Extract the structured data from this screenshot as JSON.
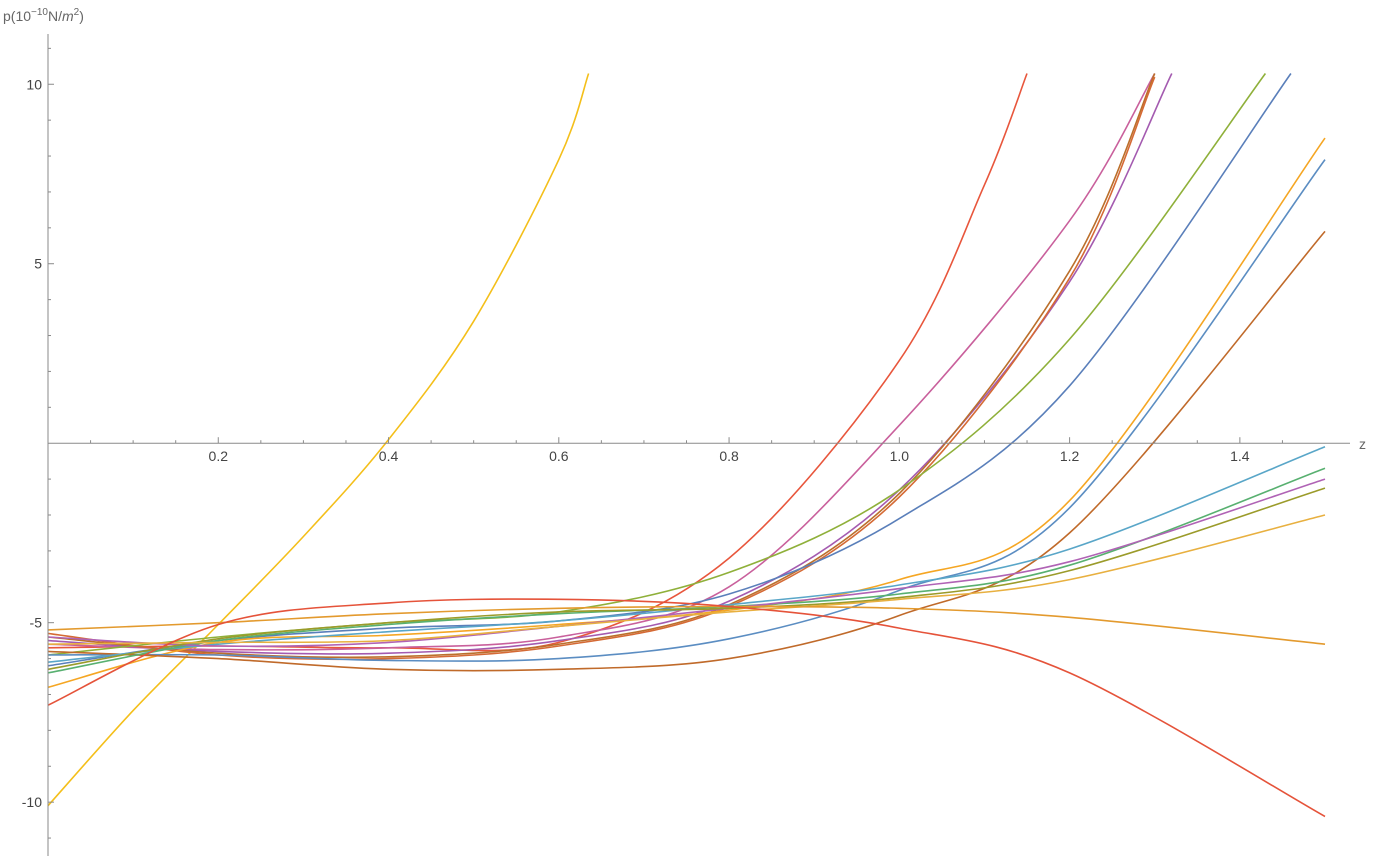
{
  "chart_data": {
    "type": "line",
    "xlabel": "z",
    "ylabel_parts": {
      "prefix": "p(10",
      "exp": "−10",
      "mid": "N/",
      "unit": "m",
      "unit_exp": "2",
      "suffix": ")"
    },
    "xlim": [
      0,
      1.5
    ],
    "ylim": [
      -11.5,
      11.4
    ],
    "x_ticks": [
      {
        "v": 0.2,
        "label": "0.2"
      },
      {
        "v": 0.4,
        "label": "0.4"
      },
      {
        "v": 0.6,
        "label": "0.6"
      },
      {
        "v": 0.8,
        "label": "0.8"
      },
      {
        "v": 1.0,
        "label": "1.0"
      },
      {
        "v": 1.2,
        "label": "1.2"
      },
      {
        "v": 1.4,
        "label": "1.4"
      }
    ],
    "y_ticks": [
      {
        "v": -10,
        "label": "-10"
      },
      {
        "v": -5,
        "label": "-5"
      },
      {
        "v": 5,
        "label": "5"
      },
      {
        "v": 10,
        "label": "10"
      }
    ],
    "grid": false,
    "series": [
      {
        "color": "#f4bf1a",
        "x": [
          0,
          0.1,
          0.2,
          0.3,
          0.4,
          0.5,
          0.6,
          0.635
        ],
        "y": [
          -10.1,
          -7.45,
          -5.05,
          -2.6,
          0.1,
          3.4,
          7.9,
          10.3
        ]
      },
      {
        "color": "#e8563c",
        "x": [
          0,
          0.2,
          0.4,
          0.6,
          0.8,
          1.0,
          1.1,
          1.15
        ],
        "y": [
          -5.7,
          -5.65,
          -5.7,
          -5.55,
          -3.2,
          2.3,
          7.2,
          10.3
        ]
      },
      {
        "color": "#c9609c",
        "x": [
          0,
          0.2,
          0.4,
          0.6,
          0.8,
          1.0,
          1.2,
          1.3
        ],
        "y": [
          -5.6,
          -5.75,
          -5.7,
          -5.4,
          -4.0,
          0.5,
          6.2,
          10.3
        ]
      },
      {
        "color": "#a45bb0",
        "x": [
          0,
          0.2,
          0.4,
          0.6,
          0.8,
          1.0,
          1.2,
          1.32
        ],
        "y": [
          -5.5,
          -5.8,
          -5.85,
          -5.5,
          -4.4,
          -1.3,
          4.5,
          10.3
        ]
      },
      {
        "color": "#bb6f2b",
        "x": [
          0,
          0.2,
          0.4,
          0.6,
          0.8,
          1.0,
          1.2,
          1.3
        ],
        "y": [
          -5.4,
          -5.85,
          -5.95,
          -5.6,
          -4.5,
          -1.4,
          4.8,
          10.3
        ]
      },
      {
        "color": "#d56a35",
        "x": [
          0,
          0.2,
          0.4,
          0.6,
          0.8,
          1.0,
          1.2,
          1.3
        ],
        "y": [
          -5.3,
          -5.9,
          -6.0,
          -5.65,
          -4.55,
          -1.5,
          4.6,
          10.2
        ]
      },
      {
        "color": "#8fb03a",
        "x": [
          0,
          0.2,
          0.4,
          0.6,
          0.8,
          1.0,
          1.2,
          1.43
        ],
        "y": [
          -5.9,
          -5.4,
          -5.0,
          -4.7,
          -3.6,
          -1.3,
          2.9,
          10.3
        ]
      },
      {
        "color": "#5a7fba",
        "x": [
          0,
          0.2,
          0.4,
          0.6,
          0.8,
          1.0,
          1.2,
          1.46
        ],
        "y": [
          -6.2,
          -5.5,
          -5.15,
          -4.95,
          -4.2,
          -2.1,
          1.6,
          10.3
        ]
      },
      {
        "color": "#f5a623",
        "x": [
          0,
          0.2,
          0.4,
          0.6,
          0.8,
          1.0,
          1.2,
          1.5
        ],
        "y": [
          -6.8,
          -5.55,
          -5.35,
          -5.05,
          -4.65,
          -3.8,
          -1.6,
          8.5
        ]
      },
      {
        "color": "#5b8dc2",
        "x": [
          0,
          0.2,
          0.4,
          0.6,
          0.8,
          1.0,
          1.2,
          1.5
        ],
        "y": [
          -5.9,
          -5.9,
          -6.05,
          -6.0,
          -5.45,
          -4.1,
          -1.8,
          7.9
        ]
      },
      {
        "color": "#c06a2a",
        "x": [
          0,
          0.2,
          0.4,
          0.6,
          0.8,
          1.0,
          1.2,
          1.5
        ],
        "y": [
          -5.8,
          -6.0,
          -6.3,
          -6.3,
          -6.0,
          -4.8,
          -2.5,
          5.9
        ]
      },
      {
        "color": "#59a6c8",
        "x": [
          0,
          0.2,
          0.4,
          0.6,
          0.8,
          1.0,
          1.2,
          1.5
        ],
        "y": [
          -6.1,
          -5.6,
          -5.25,
          -4.95,
          -4.5,
          -3.95,
          -2.95,
          -0.1
        ]
      },
      {
        "color": "#58b070",
        "x": [
          0,
          0.2,
          0.4,
          0.6,
          0.8,
          1.0,
          1.2,
          1.5
        ],
        "y": [
          -6.4,
          -5.5,
          -5.05,
          -4.75,
          -4.55,
          -4.2,
          -3.4,
          -0.7
        ]
      },
      {
        "color": "#b063b5",
        "x": [
          0,
          0.2,
          0.4,
          0.6,
          0.8,
          1.0,
          1.2,
          1.5
        ],
        "y": [
          -5.4,
          -5.65,
          -5.55,
          -5.1,
          -4.6,
          -4.05,
          -3.3,
          -1.0
        ]
      },
      {
        "color": "#9b9b2a",
        "x": [
          0,
          0.2,
          0.4,
          0.6,
          0.8,
          1.0,
          1.2,
          1.5
        ],
        "y": [
          -6.3,
          -5.45,
          -5.0,
          -4.7,
          -4.6,
          -4.3,
          -3.55,
          -1.25
        ]
      },
      {
        "color": "#e8b040",
        "x": [
          0,
          0.2,
          0.4,
          0.6,
          0.8,
          1.0,
          1.2,
          1.5
        ],
        "y": [
          -5.6,
          -5.55,
          -5.5,
          -5.1,
          -4.7,
          -4.35,
          -3.8,
          -2.0
        ]
      },
      {
        "color": "#e39a2e",
        "x": [
          0,
          0.2,
          0.4,
          0.6,
          0.8,
          1.0,
          1.2,
          1.5
        ],
        "y": [
          -5.2,
          -5.0,
          -4.75,
          -4.6,
          -4.55,
          -4.6,
          -4.85,
          -5.6
        ]
      },
      {
        "color": "#e5533a",
        "x": [
          0,
          0.2,
          0.4,
          0.6,
          0.8,
          1.0,
          1.2,
          1.5
        ],
        "y": [
          -7.3,
          -5.05,
          -4.45,
          -4.35,
          -4.55,
          -5.15,
          -6.4,
          -10.4
        ]
      }
    ]
  }
}
